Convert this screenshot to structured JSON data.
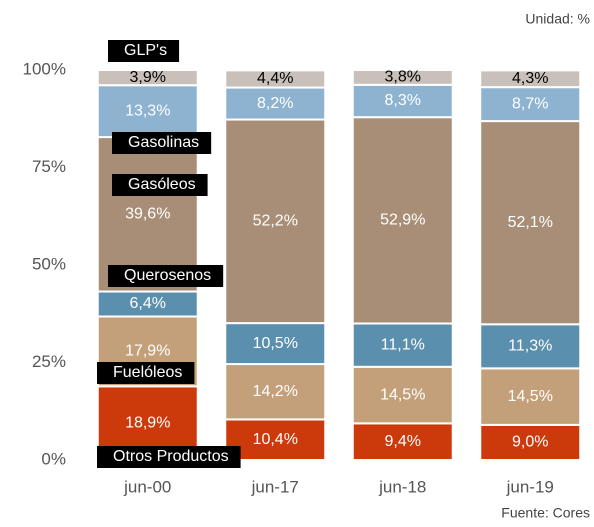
{
  "chart_data": {
    "type": "stacked-bar",
    "annotations": [
      "Unidad: %",
      "Fuente: Cores"
    ],
    "categories": [
      "jun-00",
      "jun-17",
      "jun-18",
      "jun-19"
    ],
    "series": [
      {
        "name": "Otros Productos",
        "color": "#cc3a0c",
        "values": [
          18.9,
          10.4,
          9.4,
          9.0
        ],
        "value_labels": [
          "18,9%",
          "10,4%",
          "9,4%",
          "9,0%"
        ]
      },
      {
        "name": "Fuelóleos",
        "color": "#c4a07a",
        "values": [
          17.9,
          14.2,
          14.5,
          14.5
        ],
        "value_labels": [
          "17,9%",
          "14,2%",
          "14,5%",
          "14,5%"
        ]
      },
      {
        "name": "Querosenos",
        "color": "#5a8fae",
        "values": [
          6.4,
          10.5,
          11.1,
          11.3
        ],
        "value_labels": [
          "6,4%",
          "10,5%",
          "11,1%",
          "11,3%"
        ]
      },
      {
        "name": "Gasóleos",
        "color": "#a88e76",
        "values": [
          39.6,
          52.2,
          52.9,
          52.1
        ],
        "value_labels": [
          "39,6%",
          "52,2%",
          "52,9%",
          "52,1%"
        ]
      },
      {
        "name": "Gasolinas",
        "color": "#8db3d0",
        "values": [
          13.3,
          8.2,
          8.3,
          8.7
        ],
        "value_labels": [
          "13,3%",
          "8,2%",
          "8,3%",
          "8,7%"
        ]
      },
      {
        "name": "GLP's",
        "color": "#c9c1b9",
        "values": [
          3.9,
          4.4,
          3.8,
          4.3
        ],
        "value_labels": [
          "3,9%",
          "4,4%",
          "3,8%",
          "4,3%"
        ]
      }
    ],
    "ylim": [
      0,
      100
    ],
    "yticks": [
      {
        "value": 0,
        "label": "0%"
      },
      {
        "value": 25,
        "label": "25%"
      },
      {
        "value": 50,
        "label": "50%"
      },
      {
        "value": 75,
        "label": "75%"
      },
      {
        "value": 100,
        "label": "100%"
      }
    ]
  }
}
